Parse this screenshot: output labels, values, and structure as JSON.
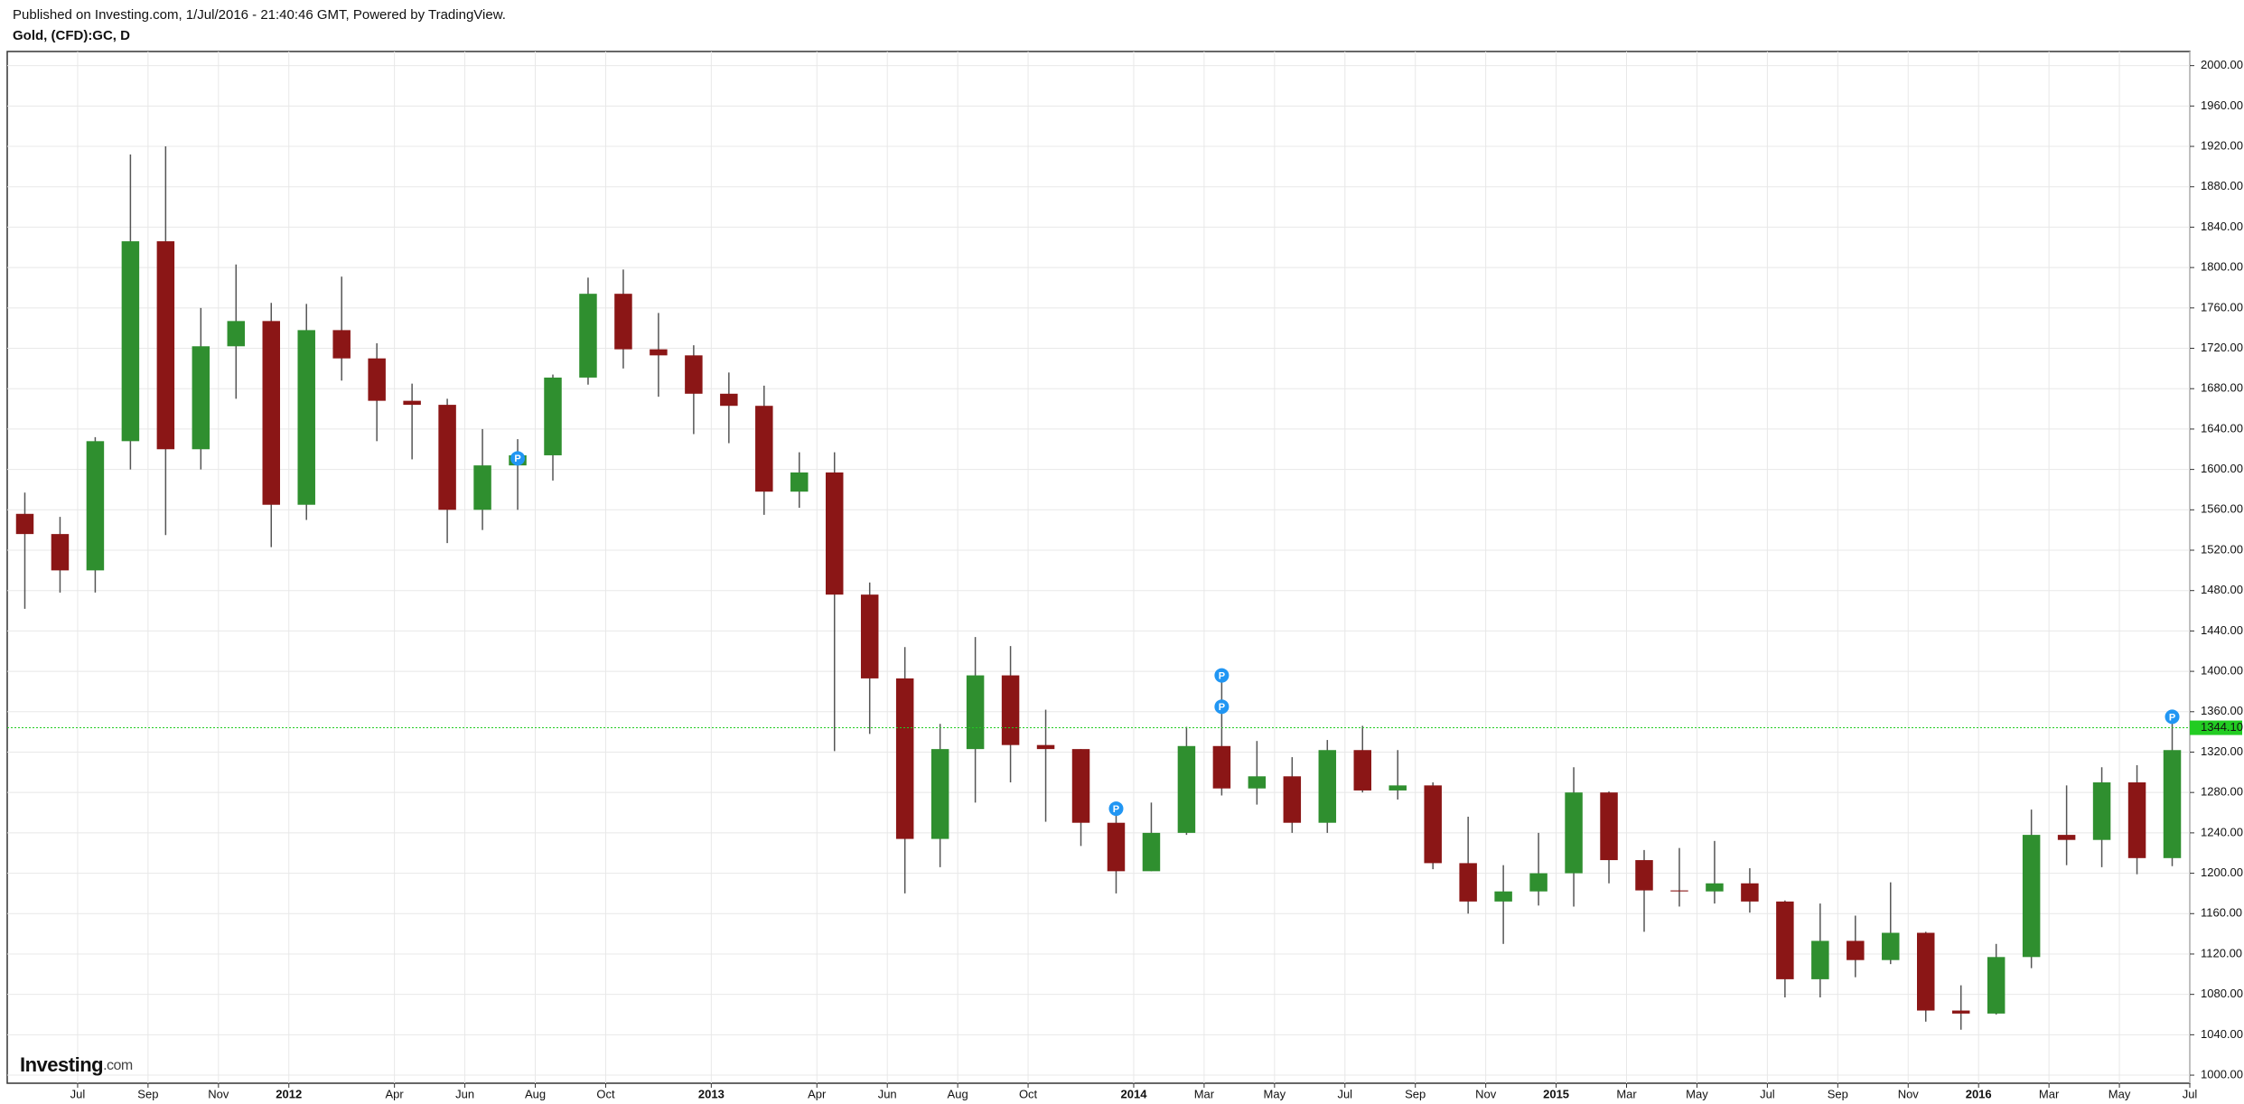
{
  "chart_data": {
    "type": "candlestick",
    "subtitle": "Published on Investing.com, 1/Jul/2016 - 21:40:46 GMT, Powered by TradingView.",
    "title": "Gold, (CFD):GC, D",
    "logo": {
      "main": "Investing",
      "suffix": ".com"
    },
    "up_color": "#2f8f2f",
    "down_color": "#8b1616",
    "grid": true,
    "x": [
      "2011-05",
      "2011-06",
      "2011-07",
      "2011-08",
      "2011-09",
      "2011-10",
      "2011-11",
      "2011-12",
      "2012-01",
      "2012-02",
      "2012-03",
      "2012-04",
      "2012-05",
      "2012-06",
      "2012-07",
      "2012-08",
      "2012-09",
      "2012-10",
      "2012-11",
      "2012-12",
      "2013-01",
      "2013-02",
      "2013-03",
      "2013-04",
      "2013-05",
      "2013-06",
      "2013-07",
      "2013-08",
      "2013-09",
      "2013-10",
      "2013-11",
      "2013-12",
      "2014-01",
      "2014-02",
      "2014-03",
      "2014-04",
      "2014-05",
      "2014-06",
      "2014-07",
      "2014-08",
      "2014-09",
      "2014-10",
      "2014-11",
      "2014-12",
      "2015-01",
      "2015-02",
      "2015-03",
      "2015-04",
      "2015-05",
      "2015-06",
      "2015-07",
      "2015-08",
      "2015-09",
      "2015-10",
      "2015-11",
      "2015-12",
      "2016-01",
      "2016-02",
      "2016-03",
      "2016-04",
      "2016-05",
      "2016-06"
    ],
    "open": [
      1556,
      1536,
      1500,
      1628,
      1826,
      1620,
      1722,
      1747,
      1565,
      1738,
      1710,
      1668,
      1664,
      1560,
      1604,
      1614,
      1691,
      1774,
      1719,
      1713,
      1675,
      1663,
      1578,
      1597,
      1476,
      1393,
      1234,
      1323,
      1396,
      1327,
      1323,
      1250,
      1202,
      1240,
      1326,
      1284,
      1296,
      1250,
      1322,
      1282,
      1287,
      1210,
      1172,
      1182,
      1200,
      1280,
      1213,
      1183,
      1182,
      1190,
      1172,
      1095,
      1133,
      1114,
      1141,
      1064,
      1061,
      1117,
      1238,
      1233,
      1290,
      1215
    ],
    "high": [
      1577,
      1553,
      1632,
      1912,
      1920,
      1760,
      1803,
      1765,
      1764,
      1791,
      1725,
      1685,
      1670,
      1640,
      1630,
      1694,
      1790,
      1798,
      1755,
      1723,
      1696,
      1683,
      1617,
      1617,
      1488,
      1424,
      1348,
      1434,
      1425,
      1362,
      1323,
      1267,
      1270,
      1345,
      1392,
      1331,
      1315,
      1332,
      1346,
      1322,
      1290,
      1256,
      1208,
      1240,
      1305,
      1281,
      1223,
      1225,
      1232,
      1205,
      1173,
      1170,
      1158,
      1191,
      1142,
      1089,
      1130,
      1263,
      1287,
      1305,
      1307,
      1362
    ],
    "low": [
      1462,
      1478,
      1478,
      1600,
      1535,
      1600,
      1670,
      1523,
      1550,
      1688,
      1628,
      1610,
      1527,
      1540,
      1560,
      1589,
      1684,
      1700,
      1672,
      1635,
      1626,
      1555,
      1562,
      1321,
      1338,
      1180,
      1206,
      1270,
      1290,
      1251,
      1227,
      1180,
      1202,
      1238,
      1277,
      1268,
      1240,
      1240,
      1280,
      1273,
      1204,
      1160,
      1130,
      1168,
      1167,
      1190,
      1142,
      1167,
      1170,
      1161,
      1077,
      1077,
      1097,
      1110,
      1053,
      1045,
      1060,
      1106,
      1208,
      1206,
      1199,
      1207
    ],
    "close": [
      1536,
      1500,
      1628,
      1826,
      1620,
      1722,
      1747,
      1565,
      1738,
      1710,
      1668,
      1664,
      1560,
      1604,
      1614,
      1691,
      1774,
      1719,
      1713,
      1675,
      1663,
      1578,
      1597,
      1476,
      1393,
      1234,
      1323,
      1396,
      1327,
      1323,
      1250,
      1202,
      1240,
      1326,
      1284,
      1296,
      1250,
      1322,
      1282,
      1287,
      1210,
      1172,
      1182,
      1200,
      1280,
      1213,
      1183,
      1182,
      1190,
      1172,
      1095,
      1133,
      1114,
      1141,
      1064,
      1061,
      1117,
      1238,
      1233,
      1290,
      1215,
      1322
    ],
    "xlim": [
      "2011-05",
      "2016-07"
    ],
    "xticks": [
      {
        "value": "2011-07",
        "label": "Jul"
      },
      {
        "value": "2011-09",
        "label": "Sep"
      },
      {
        "value": "2011-11",
        "label": "Nov"
      },
      {
        "value": "2012-01",
        "label": "2012"
      },
      {
        "value": "2012-04",
        "label": "Apr"
      },
      {
        "value": "2012-06",
        "label": "Jun"
      },
      {
        "value": "2012-08",
        "label": "Aug"
      },
      {
        "value": "2012-10",
        "label": "Oct"
      },
      {
        "value": "2013-01",
        "label": "2013"
      },
      {
        "value": "2013-04",
        "label": "Apr"
      },
      {
        "value": "2013-06",
        "label": "Jun"
      },
      {
        "value": "2013-08",
        "label": "Aug"
      },
      {
        "value": "2013-10",
        "label": "Oct"
      },
      {
        "value": "2014-01",
        "label": "2014"
      },
      {
        "value": "2014-03",
        "label": "Mar"
      },
      {
        "value": "2014-05",
        "label": "May"
      },
      {
        "value": "2014-07",
        "label": "Jul"
      },
      {
        "value": "2014-09",
        "label": "Sep"
      },
      {
        "value": "2014-11",
        "label": "Nov"
      },
      {
        "value": "2015-01",
        "label": "2015"
      },
      {
        "value": "2015-03",
        "label": "Mar"
      },
      {
        "value": "2015-05",
        "label": "May"
      },
      {
        "value": "2015-07",
        "label": "Jul"
      },
      {
        "value": "2015-09",
        "label": "Sep"
      },
      {
        "value": "2015-11",
        "label": "Nov"
      },
      {
        "value": "2016-01",
        "label": "2016"
      },
      {
        "value": "2016-03",
        "label": "Mar"
      },
      {
        "value": "2016-05",
        "label": "May"
      },
      {
        "value": "2016-07",
        "label": "Jul"
      }
    ],
    "ylim": [
      992,
      2014
    ],
    "yticks": [
      {
        "value": 1000,
        "label": "1000.00"
      },
      {
        "value": 1040,
        "label": "1040.00"
      },
      {
        "value": 1080,
        "label": "1080.00"
      },
      {
        "value": 1120,
        "label": "1120.00"
      },
      {
        "value": 1160,
        "label": "1160.00"
      },
      {
        "value": 1200,
        "label": "1200.00"
      },
      {
        "value": 1240,
        "label": "1240.00"
      },
      {
        "value": 1280,
        "label": "1280.00"
      },
      {
        "value": 1320,
        "label": "1320.00"
      },
      {
        "value": 1360,
        "label": "1360.00"
      },
      {
        "value": 1400,
        "label": "1400.00"
      },
      {
        "value": 1440,
        "label": "1440.00"
      },
      {
        "value": 1480,
        "label": "1480.00"
      },
      {
        "value": 1520,
        "label": "1520.00"
      },
      {
        "value": 1560,
        "label": "1560.00"
      },
      {
        "value": 1600,
        "label": "1600.00"
      },
      {
        "value": 1640,
        "label": "1640.00"
      },
      {
        "value": 1680,
        "label": "1680.00"
      },
      {
        "value": 1720,
        "label": "1720.00"
      },
      {
        "value": 1760,
        "label": "1760.00"
      },
      {
        "value": 1800,
        "label": "1800.00"
      },
      {
        "value": 1840,
        "label": "1840.00"
      },
      {
        "value": 1880,
        "label": "1880.00"
      },
      {
        "value": 1920,
        "label": "1920.00"
      },
      {
        "value": 1960,
        "label": "1960.00"
      },
      {
        "value": 2000,
        "label": "2000.00"
      }
    ],
    "last_price": {
      "value": 1344.1,
      "label": "1344.10",
      "color": "#22cc22"
    },
    "annotations": [
      {
        "x": "2012-07",
        "y": 1611,
        "label": "P"
      },
      {
        "x": "2013-12",
        "y": 1264,
        "label": "P"
      },
      {
        "x": "2014-03",
        "y": 1396,
        "label": "P"
      },
      {
        "x": "2014-03",
        "y": 1365,
        "label": "P"
      },
      {
        "x": "2016-06",
        "y": 1355,
        "label": "P"
      }
    ]
  }
}
